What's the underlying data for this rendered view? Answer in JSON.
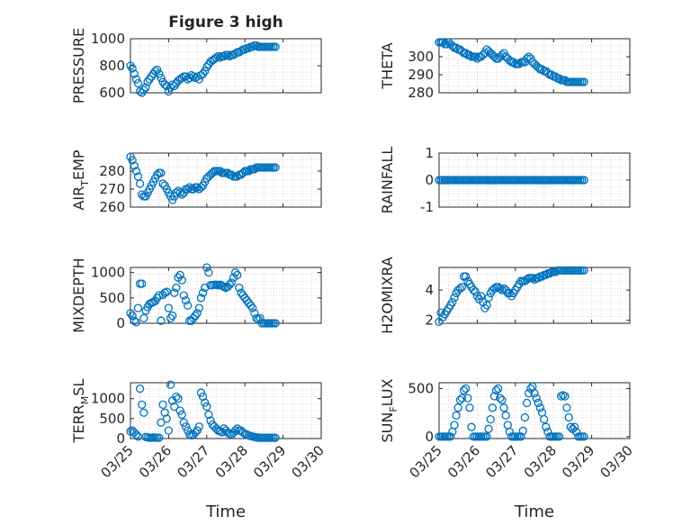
{
  "figure": {
    "title": "Figure 3 high",
    "xlabel": "Time",
    "x_tick_labels": [
      "03/25",
      "03/26",
      "03/27",
      "03/28",
      "03/29",
      "03/30"
    ],
    "x_tick_values": [
      0,
      1,
      2,
      3,
      4,
      5
    ],
    "x_range": [
      0,
      5
    ]
  },
  "chart_data": [
    {
      "type": "scatter",
      "ylabel": "PRESSURE",
      "ylim": [
        600,
        1000
      ],
      "yticks": [
        600,
        800,
        1000
      ],
      "grid": true,
      "x": [
        0.0,
        0.05,
        0.1,
        0.15,
        0.2,
        0.25,
        0.3,
        0.35,
        0.4,
        0.45,
        0.5,
        0.55,
        0.6,
        0.65,
        0.7,
        0.75,
        0.8,
        0.85,
        0.9,
        0.95,
        1.0,
        1.05,
        1.1,
        1.15,
        1.2,
        1.25,
        1.3,
        1.35,
        1.4,
        1.45,
        1.5,
        1.55,
        1.6,
        1.65,
        1.7,
        1.75,
        1.8,
        1.85,
        1.9,
        1.95,
        2.0,
        2.05,
        2.1,
        2.15,
        2.2,
        2.25,
        2.3,
        2.35,
        2.4,
        2.45,
        2.5,
        2.55,
        2.6,
        2.65,
        2.7,
        2.75,
        2.8,
        2.85,
        2.9,
        2.95,
        3.0,
        3.05,
        3.1,
        3.15,
        3.2,
        3.25,
        3.3,
        3.35,
        3.4,
        3.45,
        3.5,
        3.55,
        3.6,
        3.65,
        3.7,
        3.75,
        3.8
      ],
      "y": [
        800,
        780,
        740,
        700,
        670,
        610,
        600,
        620,
        640,
        680,
        700,
        720,
        740,
        760,
        770,
        740,
        710,
        680,
        660,
        650,
        610,
        640,
        660,
        650,
        670,
        690,
        700,
        710,
        720,
        720,
        700,
        710,
        730,
        720,
        710,
        720,
        700,
        730,
        740,
        760,
        790,
        810,
        830,
        840,
        850,
        860,
        870,
        860,
        870,
        870,
        880,
        880,
        870,
        880,
        880,
        890,
        900,
        900,
        910,
        920,
        920,
        930,
        930,
        940,
        940,
        950,
        950,
        940,
        940,
        940,
        940,
        940,
        940,
        940,
        940,
        940,
        940
      ]
    },
    {
      "type": "scatter",
      "ylabel": "THETA",
      "ylim": [
        280,
        310
      ],
      "yticks": [
        280,
        290,
        300
      ],
      "grid": true,
      "x": [
        0.0,
        0.05,
        0.1,
        0.15,
        0.2,
        0.25,
        0.3,
        0.35,
        0.4,
        0.45,
        0.5,
        0.55,
        0.6,
        0.65,
        0.7,
        0.75,
        0.8,
        0.85,
        0.9,
        0.95,
        1.0,
        1.05,
        1.1,
        1.15,
        1.2,
        1.25,
        1.3,
        1.35,
        1.4,
        1.45,
        1.5,
        1.55,
        1.6,
        1.65,
        1.7,
        1.75,
        1.8,
        1.85,
        1.9,
        1.95,
        2.0,
        2.05,
        2.1,
        2.15,
        2.2,
        2.25,
        2.3,
        2.35,
        2.4,
        2.45,
        2.5,
        2.55,
        2.6,
        2.65,
        2.7,
        2.75,
        2.8,
        2.85,
        2.9,
        2.95,
        3.0,
        3.05,
        3.1,
        3.15,
        3.2,
        3.25,
        3.3,
        3.35,
        3.4,
        3.45,
        3.5,
        3.55,
        3.6,
        3.65,
        3.7,
        3.75,
        3.8
      ],
      "y": [
        308,
        308,
        308,
        307,
        307,
        308,
        307,
        306,
        305,
        305,
        304,
        304,
        303,
        302,
        302,
        301,
        301,
        300,
        300,
        300,
        299,
        300,
        300,
        301,
        302,
        304,
        303,
        302,
        301,
        300,
        299,
        299,
        300,
        301,
        302,
        300,
        299,
        298,
        297,
        297,
        296,
        296,
        296,
        297,
        297,
        297,
        299,
        300,
        299,
        297,
        296,
        295,
        294,
        293,
        293,
        292,
        292,
        291,
        290,
        290,
        289,
        289,
        288,
        288,
        287,
        287,
        287,
        286,
        286,
        286,
        286,
        286,
        286,
        286,
        286,
        286,
        286
      ]
    },
    {
      "type": "scatter",
      "ylabel": "AIR_TEMP",
      "ylim": [
        260,
        290
      ],
      "yticks": [
        260,
        270,
        280
      ],
      "grid": true,
      "x": [
        0.0,
        0.05,
        0.1,
        0.15,
        0.2,
        0.25,
        0.3,
        0.35,
        0.4,
        0.45,
        0.5,
        0.55,
        0.6,
        0.65,
        0.7,
        0.75,
        0.8,
        0.85,
        0.9,
        0.95,
        1.0,
        1.05,
        1.1,
        1.15,
        1.2,
        1.25,
        1.3,
        1.35,
        1.4,
        1.45,
        1.5,
        1.55,
        1.6,
        1.65,
        1.7,
        1.75,
        1.8,
        1.85,
        1.9,
        1.95,
        2.0,
        2.05,
        2.1,
        2.15,
        2.2,
        2.25,
        2.3,
        2.35,
        2.4,
        2.45,
        2.5,
        2.55,
        2.6,
        2.65,
        2.7,
        2.75,
        2.8,
        2.85,
        2.9,
        2.95,
        3.0,
        3.05,
        3.1,
        3.15,
        3.2,
        3.25,
        3.3,
        3.35,
        3.4,
        3.45,
        3.5,
        3.55,
        3.6,
        3.65,
        3.7,
        3.75,
        3.8
      ],
      "y": [
        288,
        286,
        283,
        280,
        277,
        273,
        267,
        266,
        266,
        268,
        270,
        272,
        274,
        276,
        278,
        279,
        279,
        273,
        272,
        270,
        268,
        266,
        264,
        266,
        268,
        269,
        268,
        267,
        268,
        270,
        270,
        271,
        270,
        270,
        271,
        271,
        270,
        271,
        272,
        274,
        276,
        277,
        278,
        279,
        280,
        280,
        280,
        280,
        279,
        279,
        279,
        279,
        278,
        278,
        277,
        277,
        277,
        278,
        278,
        279,
        280,
        280,
        280,
        281,
        281,
        281,
        282,
        282,
        282,
        282,
        282,
        282,
        282,
        282,
        282,
        282,
        282
      ]
    },
    {
      "type": "scatter",
      "ylabel": "RAINFALL",
      "ylim": [
        -1,
        1
      ],
      "yticks": [
        -1,
        0,
        1
      ],
      "grid": true,
      "x": [
        0.0,
        0.05,
        0.1,
        0.15,
        0.2,
        0.25,
        0.3,
        0.35,
        0.4,
        0.45,
        0.5,
        0.55,
        0.6,
        0.65,
        0.7,
        0.75,
        0.8,
        0.85,
        0.9,
        0.95,
        1.0,
        1.05,
        1.1,
        1.15,
        1.2,
        1.25,
        1.3,
        1.35,
        1.4,
        1.45,
        1.5,
        1.55,
        1.6,
        1.65,
        1.7,
        1.75,
        1.8,
        1.85,
        1.9,
        1.95,
        2.0,
        2.05,
        2.1,
        2.15,
        2.2,
        2.25,
        2.3,
        2.35,
        2.4,
        2.45,
        2.5,
        2.55,
        2.6,
        2.65,
        2.7,
        2.75,
        2.8,
        2.85,
        2.9,
        2.95,
        3.0,
        3.05,
        3.1,
        3.15,
        3.2,
        3.25,
        3.3,
        3.35,
        3.4,
        3.45,
        3.5,
        3.55,
        3.6,
        3.65,
        3.7,
        3.75,
        3.8
      ],
      "y": [
        0,
        0,
        0,
        0,
        0,
        0,
        0,
        0,
        0,
        0,
        0,
        0,
        0,
        0,
        0,
        0,
        0,
        0,
        0,
        0,
        0,
        0,
        0,
        0,
        0,
        0,
        0,
        0,
        0,
        0,
        0,
        0,
        0,
        0,
        0,
        0,
        0,
        0,
        0,
        0,
        0,
        0,
        0,
        0,
        0,
        0,
        0,
        0,
        0,
        0,
        0,
        0,
        0,
        0,
        0,
        0,
        0,
        0,
        0,
        0,
        0,
        0,
        0,
        0,
        0,
        0,
        0,
        0,
        0,
        0,
        0,
        0,
        0,
        0,
        0,
        0,
        0
      ]
    },
    {
      "type": "scatter",
      "ylabel": "MIXDEPTH",
      "ylim": [
        0,
        1100
      ],
      "yticks": [
        0,
        500,
        1000
      ],
      "grid": true,
      "x": [
        0.0,
        0.05,
        0.1,
        0.15,
        0.2,
        0.25,
        0.3,
        0.35,
        0.4,
        0.45,
        0.5,
        0.55,
        0.6,
        0.65,
        0.7,
        0.75,
        0.8,
        0.85,
        0.9,
        0.95,
        1.0,
        1.05,
        1.1,
        1.15,
        1.2,
        1.25,
        1.3,
        1.35,
        1.4,
        1.45,
        1.5,
        1.55,
        1.6,
        1.65,
        1.7,
        1.75,
        1.8,
        1.85,
        1.9,
        1.95,
        2.0,
        2.05,
        2.1,
        2.15,
        2.2,
        2.25,
        2.3,
        2.35,
        2.4,
        2.45,
        2.5,
        2.55,
        2.6,
        2.65,
        2.7,
        2.75,
        2.8,
        2.85,
        2.9,
        2.95,
        3.0,
        3.05,
        3.1,
        3.15,
        3.2,
        3.25,
        3.3,
        3.35,
        3.4,
        3.45,
        3.5,
        3.55,
        3.6,
        3.65,
        3.7,
        3.75,
        3.8
      ],
      "y": [
        200,
        150,
        50,
        20,
        300,
        780,
        780,
        100,
        250,
        320,
        380,
        400,
        420,
        440,
        500,
        550,
        50,
        560,
        600,
        620,
        300,
        100,
        150,
        600,
        700,
        900,
        950,
        850,
        550,
        450,
        350,
        50,
        50,
        100,
        150,
        200,
        300,
        500,
        600,
        700,
        1100,
        1000,
        750,
        750,
        760,
        760,
        750,
        760,
        740,
        720,
        700,
        720,
        760,
        800,
        900,
        1000,
        950,
        700,
        600,
        550,
        500,
        450,
        400,
        350,
        300,
        200,
        100,
        80,
        100,
        0,
        0,
        0,
        0,
        0,
        0,
        0,
        0
      ]
    },
    {
      "type": "scatter",
      "ylabel": "H2OMIXRA",
      "ylim": [
        1.8,
        5.5
      ],
      "yticks": [
        2,
        4
      ],
      "grid": true,
      "x": [
        0.0,
        0.05,
        0.1,
        0.15,
        0.2,
        0.25,
        0.3,
        0.35,
        0.4,
        0.45,
        0.5,
        0.55,
        0.6,
        0.65,
        0.7,
        0.75,
        0.8,
        0.85,
        0.9,
        0.95,
        1.0,
        1.05,
        1.1,
        1.15,
        1.2,
        1.25,
        1.3,
        1.35,
        1.4,
        1.45,
        1.5,
        1.55,
        1.6,
        1.65,
        1.7,
        1.75,
        1.8,
        1.85,
        1.9,
        1.95,
        2.0,
        2.05,
        2.1,
        2.15,
        2.2,
        2.25,
        2.3,
        2.35,
        2.4,
        2.45,
        2.5,
        2.55,
        2.6,
        2.65,
        2.7,
        2.75,
        2.8,
        2.85,
        2.9,
        2.95,
        3.0,
        3.05,
        3.1,
        3.15,
        3.2,
        3.25,
        3.3,
        3.35,
        3.4,
        3.45,
        3.5,
        3.55,
        3.6,
        3.65,
        3.7,
        3.75,
        3.8
      ],
      "y": [
        1.9,
        2.5,
        2.2,
        2.4,
        2.6,
        2.8,
        3.0,
        3.2,
        3.5,
        3.8,
        4.0,
        4.1,
        4.2,
        4.9,
        4.9,
        4.6,
        4.4,
        4.2,
        4.0,
        3.9,
        3.6,
        3.4,
        3.6,
        3.2,
        2.8,
        3.0,
        3.5,
        3.8,
        4.0,
        4.1,
        4.2,
        4.2,
        4.1,
        4.0,
        4.1,
        4.0,
        3.8,
        3.8,
        3.6,
        3.8,
        4.0,
        4.2,
        4.4,
        4.6,
        4.6,
        4.6,
        4.7,
        4.8,
        4.8,
        4.8,
        4.7,
        4.8,
        4.8,
        4.9,
        4.9,
        5.0,
        5.0,
        5.1,
        5.1,
        5.2,
        5.2,
        5.2,
        5.3,
        5.3,
        5.3,
        5.3,
        5.3,
        5.3,
        5.3,
        5.3,
        5.3,
        5.3,
        5.3,
        5.3,
        5.3,
        5.3,
        5.3
      ]
    },
    {
      "type": "scatter",
      "ylabel": "TERR_MSL",
      "ylim": [
        0,
        1400
      ],
      "yticks": [
        0,
        500,
        1000
      ],
      "grid": true,
      "x": [
        0.0,
        0.05,
        0.1,
        0.15,
        0.2,
        0.25,
        0.3,
        0.35,
        0.4,
        0.45,
        0.5,
        0.55,
        0.6,
        0.65,
        0.7,
        0.75,
        0.8,
        0.85,
        0.9,
        0.95,
        1.0,
        1.05,
        1.1,
        1.15,
        1.2,
        1.25,
        1.3,
        1.35,
        1.4,
        1.45,
        1.5,
        1.55,
        1.6,
        1.65,
        1.7,
        1.75,
        1.8,
        1.85,
        1.9,
        1.95,
        2.0,
        2.05,
        2.1,
        2.15,
        2.2,
        2.25,
        2.3,
        2.35,
        2.4,
        2.45,
        2.5,
        2.55,
        2.6,
        2.65,
        2.7,
        2.75,
        2.8,
        2.85,
        2.9,
        2.95,
        3.0,
        3.05,
        3.1,
        3.15,
        3.2,
        3.25,
        3.3,
        3.35,
        3.4,
        3.45,
        3.5,
        3.55,
        3.6,
        3.65,
        3.7,
        3.75,
        3.8
      ],
      "y": [
        180,
        200,
        150,
        100,
        50,
        1250,
        850,
        650,
        40,
        30,
        20,
        20,
        30,
        20,
        20,
        20,
        400,
        850,
        650,
        500,
        200,
        1350,
        950,
        800,
        1050,
        1000,
        700,
        600,
        400,
        300,
        200,
        100,
        80,
        100,
        150,
        200,
        300,
        1150,
        1050,
        900,
        800,
        600,
        450,
        350,
        300,
        250,
        200,
        180,
        160,
        250,
        200,
        150,
        120,
        100,
        150,
        200,
        250,
        200,
        200,
        150,
        120,
        100,
        80,
        60,
        50,
        40,
        30,
        20,
        20,
        20,
        20,
        20,
        20,
        20,
        20,
        20,
        20
      ]
    },
    {
      "type": "scatter",
      "ylabel": "SUN_FLUX",
      "ylim": [
        -20,
        560
      ],
      "yticks": [
        0,
        500
      ],
      "grid": true,
      "x": [
        0.0,
        0.05,
        0.1,
        0.15,
        0.2,
        0.25,
        0.3,
        0.35,
        0.4,
        0.45,
        0.5,
        0.55,
        0.6,
        0.65,
        0.7,
        0.75,
        0.8,
        0.85,
        0.9,
        0.95,
        1.0,
        1.05,
        1.1,
        1.15,
        1.2,
        1.25,
        1.3,
        1.35,
        1.4,
        1.45,
        1.5,
        1.55,
        1.6,
        1.65,
        1.7,
        1.75,
        1.8,
        1.85,
        1.9,
        1.95,
        2.0,
        2.05,
        2.1,
        2.15,
        2.2,
        2.25,
        2.3,
        2.35,
        2.4,
        2.45,
        2.5,
        2.55,
        2.6,
        2.65,
        2.7,
        2.75,
        2.8,
        2.85,
        2.9,
        2.95,
        3.0,
        3.05,
        3.1,
        3.15,
        3.2,
        3.25,
        3.3,
        3.35,
        3.4,
        3.45,
        3.5,
        3.55,
        3.6,
        3.65,
        3.7,
        3.75,
        3.8
      ],
      "y": [
        0,
        0,
        0,
        0,
        0,
        0,
        0,
        50,
        120,
        220,
        300,
        380,
        400,
        480,
        500,
        400,
        300,
        100,
        0,
        0,
        0,
        0,
        0,
        0,
        0,
        0,
        80,
        180,
        300,
        420,
        480,
        500,
        400,
        380,
        300,
        220,
        120,
        50,
        0,
        0,
        0,
        0,
        0,
        0,
        60,
        200,
        350,
        450,
        500,
        520,
        450,
        400,
        350,
        300,
        250,
        180,
        100,
        50,
        0,
        0,
        0,
        0,
        0,
        0,
        420,
        430,
        420,
        300,
        200,
        100,
        80,
        100,
        50,
        0,
        0,
        0,
        0
      ]
    }
  ]
}
